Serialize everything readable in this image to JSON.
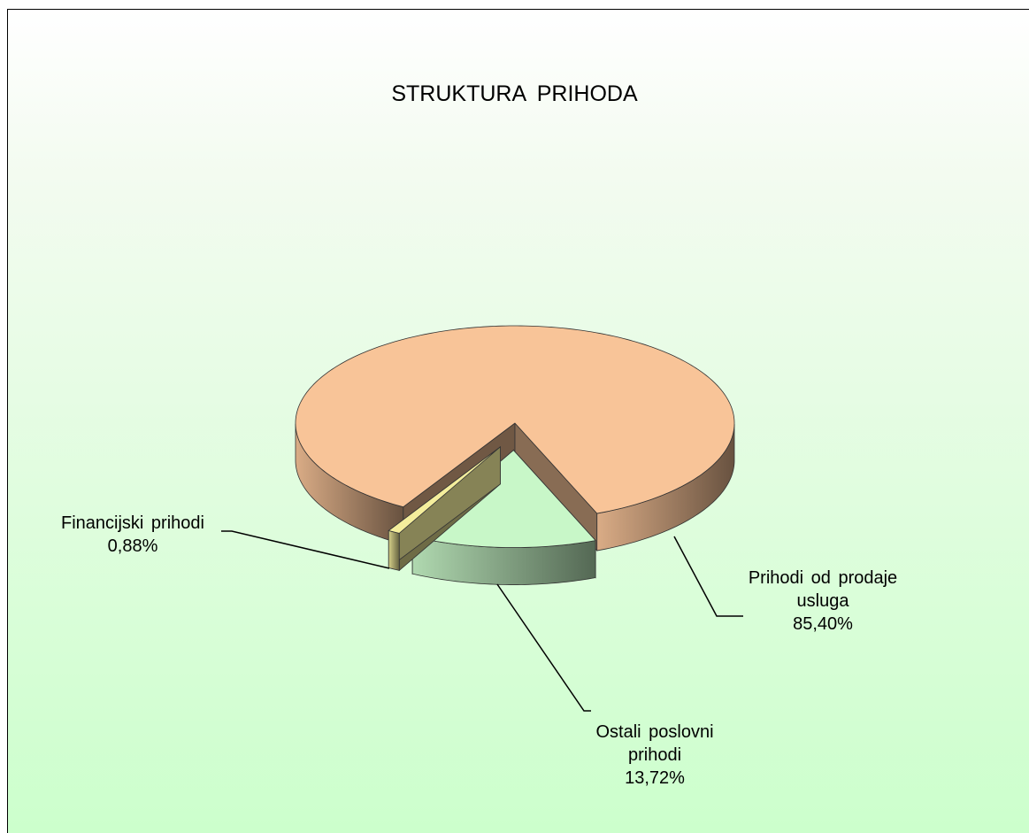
{
  "chart_data": {
    "type": "pie",
    "title": "STRUKTURA PRIHODA",
    "categories": [
      "Prihodi od prodaje usluga",
      "Ostali poslovni prihodi",
      "Financijski prihodi"
    ],
    "values": [
      85.4,
      13.72,
      0.88
    ],
    "value_labels": [
      "85,40%",
      "13,72%",
      "0,88%"
    ],
    "colors": [
      "#f8c498",
      "#c8f7c8",
      "#f4ee9c"
    ]
  }
}
